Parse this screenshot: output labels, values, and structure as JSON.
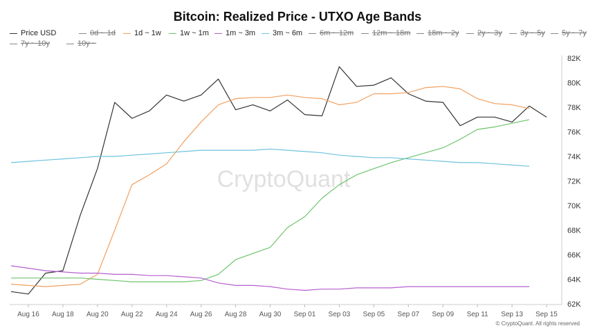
{
  "chart_data": {
    "type": "line",
    "title": "Bitcoin: Realized Price - UTXO Age Bands",
    "watermark": "CryptoQuant",
    "copyright": "© CryptoQuant. All rights reserved",
    "ylim": [
      62000,
      82000
    ],
    "yticks": [
      {
        "value": 62000,
        "label": "62K"
      },
      {
        "value": 64000,
        "label": "64K"
      },
      {
        "value": 66000,
        "label": "66K"
      },
      {
        "value": 68000,
        "label": "68K"
      },
      {
        "value": 70000,
        "label": "70K"
      },
      {
        "value": 72000,
        "label": "72K"
      },
      {
        "value": 74000,
        "label": "74K"
      },
      {
        "value": 76000,
        "label": "76K"
      },
      {
        "value": 78000,
        "label": "78K"
      },
      {
        "value": 80000,
        "label": "80K"
      },
      {
        "value": 82000,
        "label": "82K"
      }
    ],
    "x": [
      "Aug 15",
      "Aug 16",
      "Aug 17",
      "Aug 18",
      "Aug 19",
      "Aug 20",
      "Aug 21",
      "Aug 22",
      "Aug 23",
      "Aug 24",
      "Aug 25",
      "Aug 26",
      "Aug 27",
      "Aug 28",
      "Aug 29",
      "Aug 30",
      "Aug 31",
      "Sep 01",
      "Sep 02",
      "Sep 03",
      "Sep 04",
      "Sep 05",
      "Sep 06",
      "Sep 07",
      "Sep 08",
      "Sep 09",
      "Sep 10",
      "Sep 11",
      "Sep 12",
      "Sep 13",
      "Sep 14",
      "Sep 15"
    ],
    "xticks": [
      "Aug 16",
      "Aug 18",
      "Aug 20",
      "Aug 22",
      "Aug 24",
      "Aug 26",
      "Aug 28",
      "Aug 30",
      "Sep 01",
      "Sep 03",
      "Sep 05",
      "Sep 07",
      "Sep 09",
      "Sep 11",
      "Sep 13",
      "Sep 15"
    ],
    "legend": [
      {
        "name": "Price USD",
        "color": "#333333",
        "visible": true
      },
      {
        "name": "0d ~ 1d",
        "color": "#888888",
        "visible": false
      },
      {
        "name": "1d ~ 1w",
        "color": "#f0a060",
        "visible": true
      },
      {
        "name": "1w ~ 1m",
        "color": "#6cc46c",
        "visible": true
      },
      {
        "name": "1m ~ 3m",
        "color": "#b55fcf",
        "visible": true
      },
      {
        "name": "3m ~ 6m",
        "color": "#6ec3dd",
        "visible": true
      },
      {
        "name": "6m ~ 12m",
        "color": "#888888",
        "visible": false
      },
      {
        "name": "12m ~ 18m",
        "color": "#888888",
        "visible": false
      },
      {
        "name": "18m ~ 2y",
        "color": "#888888",
        "visible": false
      },
      {
        "name": "2y ~ 3y",
        "color": "#888888",
        "visible": false
      },
      {
        "name": "3y ~ 5y",
        "color": "#888888",
        "visible": false
      },
      {
        "name": "5y ~ 7y",
        "color": "#888888",
        "visible": false
      },
      {
        "name": "7y ~ 10y",
        "color": "#888888",
        "visible": false
      },
      {
        "name": "10y ~",
        "color": "#888888",
        "visible": false
      }
    ],
    "series": [
      {
        "name": "Price USD",
        "color": "#333333",
        "values": [
          63000,
          62800,
          64500,
          64700,
          69200,
          73000,
          78400,
          77100,
          77700,
          79000,
          78500,
          79000,
          80300,
          77800,
          78200,
          77700,
          78600,
          77400,
          77300,
          81300,
          79700,
          79800,
          80400,
          79100,
          78500,
          78400,
          76500,
          77200,
          77200,
          76800,
          78100,
          77200
        ]
      },
      {
        "name": "1d ~ 1w",
        "color": "#f0a060",
        "values": [
          63600,
          63500,
          63400,
          63500,
          63600,
          64400,
          68000,
          71700,
          72500,
          73400,
          75200,
          76800,
          78200,
          78700,
          78800,
          78800,
          79000,
          78800,
          78700,
          78200,
          78400,
          79100,
          79100,
          79200,
          79600,
          79700,
          79500,
          78700,
          78300,
          78200,
          77900,
          null
        ]
      },
      {
        "name": "1w ~ 1m",
        "color": "#6cc46c",
        "values": [
          64100,
          64100,
          64100,
          64100,
          64100,
          64000,
          63900,
          63800,
          63800,
          63800,
          63800,
          63900,
          64400,
          65600,
          66100,
          66600,
          68200,
          69100,
          70600,
          71700,
          72500,
          73000,
          73500,
          73900,
          74300,
          74700,
          75400,
          76200,
          76400,
          76700,
          77000,
          null
        ]
      },
      {
        "name": "1m ~ 3m",
        "color": "#b55fcf",
        "values": [
          65100,
          64900,
          64700,
          64600,
          64500,
          64500,
          64400,
          64400,
          64300,
          64300,
          64200,
          64100,
          63700,
          63500,
          63500,
          63400,
          63200,
          63100,
          63200,
          63200,
          63300,
          63300,
          63300,
          63400,
          63400,
          63400,
          63400,
          63400,
          63400,
          63400,
          63400,
          null
        ]
      },
      {
        "name": "3m ~ 6m",
        "color": "#6ec3dd",
        "values": [
          73500,
          73600,
          73700,
          73800,
          73900,
          74000,
          74000,
          74100,
          74200,
          74300,
          74400,
          74500,
          74500,
          74500,
          74500,
          74600,
          74500,
          74400,
          74300,
          74100,
          74000,
          73900,
          73900,
          73800,
          73700,
          73600,
          73500,
          73500,
          73400,
          73300,
          73200,
          null
        ]
      }
    ]
  }
}
